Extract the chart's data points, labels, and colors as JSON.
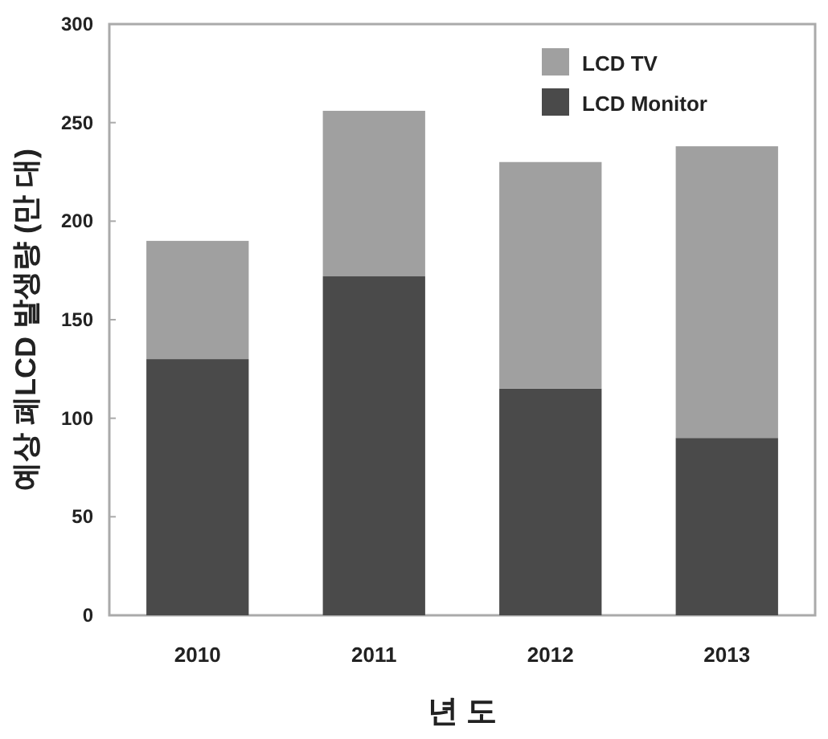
{
  "chart_data": {
    "type": "bar",
    "stacked": true,
    "xlabel": "년 도",
    "ylabel": "예상 폐LCD 발생량 (만 대)",
    "categories": [
      "2010",
      "2011",
      "2012",
      "2013"
    ],
    "series": [
      {
        "name": "LCD Monitor",
        "color": "#4a4a4a",
        "values": [
          130,
          172,
          115,
          90
        ]
      },
      {
        "name": "LCD TV",
        "color": "#a0a0a0",
        "values": [
          60,
          84,
          115,
          148
        ]
      }
    ],
    "ylim": [
      0,
      300
    ],
    "yticks": [
      0,
      50,
      100,
      150,
      200,
      250,
      300
    ],
    "grid": false,
    "legend": "top right"
  }
}
